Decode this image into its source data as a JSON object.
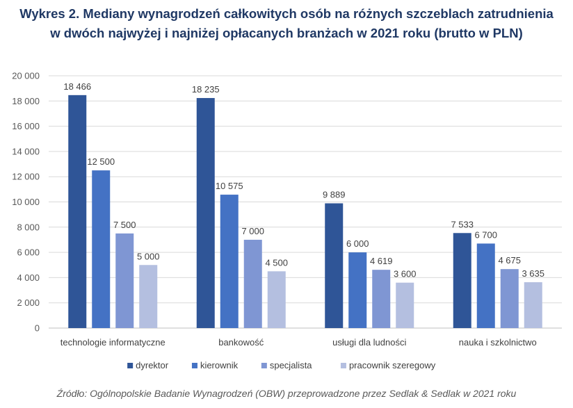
{
  "chart_data": {
    "type": "bar",
    "title_line1": "Wykres 2. Mediany wynagrodzeń całkowitych osób na różnych szczeblach zatrudnienia",
    "title_line2": "w dwóch najwyżej i najniżej opłacanych branżach w 2021 roku (brutto w PLN)",
    "categories": [
      "technologie informatyczne",
      "bankowość",
      "usługi dla ludności",
      "nauka i szkolnictwo"
    ],
    "series": [
      {
        "name": "dyrektor",
        "color": "#2f5597",
        "values": [
          18466,
          18235,
          9889,
          7533
        ],
        "labels": [
          "18 466",
          "18 235",
          "9 889",
          "7 533"
        ]
      },
      {
        "name": "kierownik",
        "color": "#4472c4",
        "values": [
          12500,
          10575,
          6000,
          6700
        ],
        "labels": [
          "12 500",
          "10 575",
          "6 000",
          "6 700"
        ]
      },
      {
        "name": "specjalista",
        "color": "#7f96d3",
        "values": [
          7500,
          7000,
          4619,
          4675
        ],
        "labels": [
          "7 500",
          "7 000",
          "4 619",
          "4 675"
        ]
      },
      {
        "name": "pracownik szeregowy",
        "color": "#b4bfe0",
        "values": [
          5000,
          4500,
          3600,
          3635
        ],
        "labels": [
          "5 000",
          "4 500",
          "3 600",
          "3 635"
        ]
      }
    ],
    "yticks": [
      0,
      2000,
      4000,
      6000,
      8000,
      10000,
      12000,
      14000,
      16000,
      18000,
      20000
    ],
    "ytick_labels": [
      "0",
      "2 000",
      "4 000",
      "6 000",
      "8 000",
      "10 000",
      "12 000",
      "14 000",
      "16 000",
      "18 000",
      "20 000"
    ],
    "ylim": [
      0,
      20000
    ],
    "xlabel": "",
    "ylabel": "",
    "grid": true,
    "legend_position": "bottom"
  },
  "source": "Źródło: Ogólnopolskie Badanie Wynagrodzeń (OBW) przeprowadzone przez Sedlak & Sedlak w 2021 roku"
}
